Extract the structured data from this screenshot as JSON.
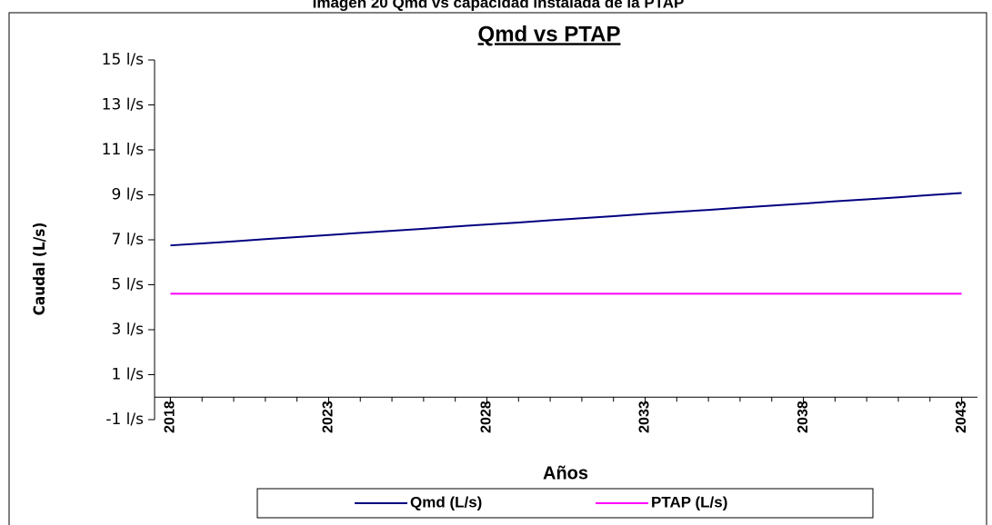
{
  "caption": "Imagen 20 Qmd vs capacidad instalada de la PTAP",
  "chart_data": {
    "type": "line",
    "title": "Qmd vs PTAP",
    "xlabel": "Años",
    "ylabel": "Caudal (L/s)",
    "x": [
      2018,
      2019,
      2020,
      2021,
      2022,
      2023,
      2024,
      2025,
      2026,
      2027,
      2028,
      2029,
      2030,
      2031,
      2032,
      2033,
      2034,
      2035,
      2036,
      2037,
      2038,
      2039,
      2040,
      2041,
      2042,
      2043
    ],
    "series": [
      {
        "name": "Qmd (L/s)",
        "color": "#000080",
        "values": [
          6.75,
          6.84,
          6.93,
          7.03,
          7.12,
          7.21,
          7.31,
          7.4,
          7.49,
          7.59,
          7.68,
          7.77,
          7.87,
          7.96,
          8.05,
          8.15,
          8.24,
          8.33,
          8.43,
          8.52,
          8.61,
          8.71,
          8.8,
          8.89,
          8.99,
          9.08
        ]
      },
      {
        "name": "PTAP (L/s)",
        "color": "#ff00ff",
        "values": [
          4.6,
          4.6,
          4.6,
          4.6,
          4.6,
          4.6,
          4.6,
          4.6,
          4.6,
          4.6,
          4.6,
          4.6,
          4.6,
          4.6,
          4.6,
          4.6,
          4.6,
          4.6,
          4.6,
          4.6,
          4.6,
          4.6,
          4.6,
          4.6,
          4.6,
          4.6
        ]
      }
    ],
    "xlim": [
      2017.5,
      2043.5
    ],
    "xticks": [
      2018,
      2023,
      2028,
      2033,
      2038,
      2043
    ],
    "ylim": [
      -1,
      15
    ],
    "yticks": [
      {
        "value": -1,
        "label": "-1 l/s"
      },
      {
        "value": 1,
        "label": "1 l/s"
      },
      {
        "value": 3,
        "label": "3 l/s"
      },
      {
        "value": 5,
        "label": "5 l/s"
      },
      {
        "value": 7,
        "label": "7 l/s"
      },
      {
        "value": 9,
        "label": "9 l/s"
      },
      {
        "value": 11,
        "label": "11 l/s"
      },
      {
        "value": 13,
        "label": "13 l/s"
      },
      {
        "value": 15,
        "label": "15 l/s"
      }
    ],
    "legend": "bottom"
  }
}
